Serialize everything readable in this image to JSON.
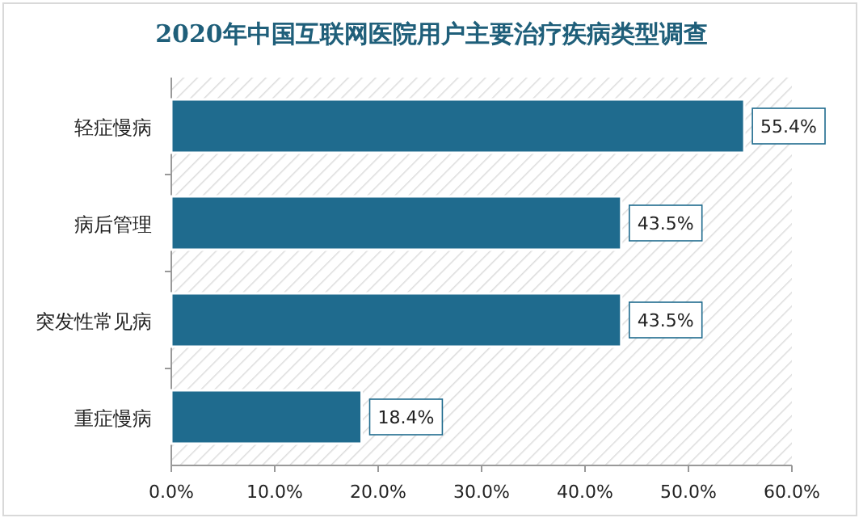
{
  "chart_data": {
    "type": "bar",
    "title": "2020年中国互联网医院用户主要治疗疾病类型调查",
    "orientation": "horizontal",
    "categories": [
      "轻症慢病",
      "病后管理",
      "突发性常见病",
      "重症慢病"
    ],
    "values": [
      55.4,
      43.5,
      43.5,
      18.4
    ],
    "value_labels": [
      "55.4%",
      "43.5%",
      "43.5%",
      "18.4%"
    ],
    "color": "#1f6b8e",
    "xlim": [
      0,
      60
    ],
    "xticks": [
      {
        "value": 0,
        "label": "0.0%"
      },
      {
        "value": 10,
        "label": "10.0%"
      },
      {
        "value": 20,
        "label": "20.0%"
      },
      {
        "value": 30,
        "label": "30.0%"
      },
      {
        "value": 40,
        "label": "40.0%"
      },
      {
        "value": 50,
        "label": "50.0%"
      },
      {
        "value": 60,
        "label": "60.0%"
      }
    ]
  }
}
